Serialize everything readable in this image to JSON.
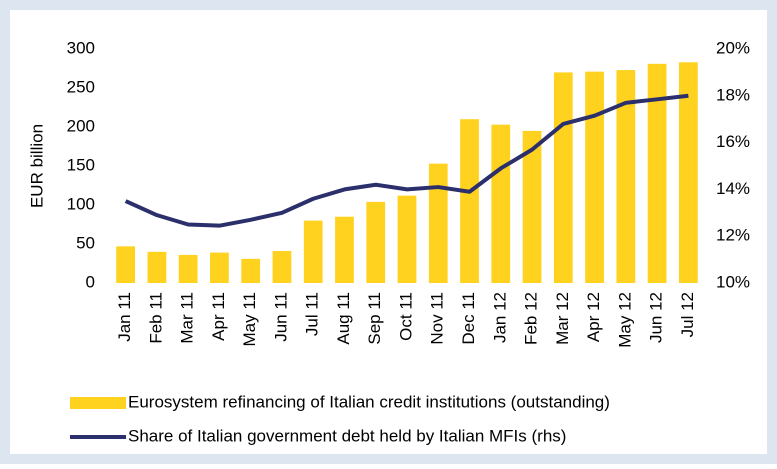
{
  "chart_data": {
    "type": "bar-line",
    "y_label": "EUR billion",
    "categories": [
      "Jan 11",
      "Feb 11",
      "Mar 11",
      "Apr 11",
      "May 11",
      "Jun 11",
      "Jul 11",
      "Aug 11",
      "Sep 11",
      "Oct 11",
      "Nov 11",
      "Dec 11",
      "Jan 12",
      "Feb 12",
      "Mar 12",
      "Apr 12",
      "May 12",
      "Jun 12",
      "Jul 12"
    ],
    "series": [
      {
        "name": "Eurosystem refinancing of Italian credit institutions (outstanding)",
        "type": "bar",
        "color": "#ffd21f",
        "values": [
          47,
          40,
          36,
          39,
          31,
          41,
          80,
          85,
          104,
          112,
          153,
          210,
          203,
          195,
          270,
          271,
          273,
          281,
          283
        ]
      },
      {
        "name": "Share of Italian government debt held by Italian MFIs (rhs)",
        "type": "line",
        "axis": "y2",
        "color": "#2b2f6b",
        "values": [
          13.5,
          12.9,
          12.5,
          12.45,
          12.7,
          13.0,
          13.6,
          14.0,
          14.2,
          14.0,
          14.1,
          13.9,
          14.9,
          15.7,
          16.8,
          17.15,
          17.7,
          17.85,
          18.0
        ]
      }
    ],
    "ylim": [
      0,
      300
    ],
    "yticks": [
      0,
      50,
      100,
      150,
      200,
      250,
      300
    ],
    "y2lim": [
      10,
      20
    ],
    "y2ticks": [
      {
        "value": 10,
        "label": "10%"
      },
      {
        "value": 12,
        "label": "12%"
      },
      {
        "value": 14,
        "label": "14%"
      },
      {
        "value": 16,
        "label": "16%"
      },
      {
        "value": 18,
        "label": "18%"
      },
      {
        "value": 20,
        "label": "20%"
      }
    ],
    "grid": false
  }
}
